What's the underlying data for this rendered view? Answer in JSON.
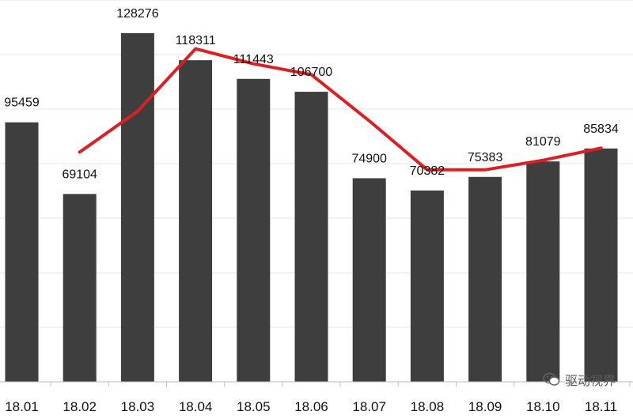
{
  "chart_data": {
    "type": "bar",
    "categories": [
      "18.01",
      "18.02",
      "18.03",
      "18.04",
      "18.05",
      "18.06",
      "18.07",
      "18.08",
      "18.09",
      "18.10",
      "18.11"
    ],
    "values": [
      95459,
      69104,
      128276,
      118311,
      111443,
      106700,
      74900,
      70382,
      75383,
      81079,
      85834
    ],
    "trend_line": [
      {
        "x": "18.02",
        "y": 84500
      },
      {
        "x": "18.03",
        "y": 99500
      },
      {
        "x": "18.04",
        "y": 122500
      },
      {
        "x": "18.05",
        "y": 117000
      },
      {
        "x": "18.06",
        "y": 113000
      },
      {
        "x": "18.07",
        "y": 96000
      },
      {
        "x": "18.08",
        "y": 78000
      },
      {
        "x": "18.09",
        "y": 78000
      },
      {
        "x": "18.10",
        "y": 81500
      },
      {
        "x": "18.11",
        "y": 86000
      }
    ],
    "ylim": [
      0,
      139000
    ],
    "grid": true,
    "title": "",
    "xlabel": "",
    "ylabel": "",
    "colors": {
      "bar": "#3f3e3e",
      "trend": "#dd1e22",
      "grid": "#e6e6e6"
    }
  },
  "watermark": {
    "text": "驱动视界",
    "icon": "wechat-icon"
  }
}
